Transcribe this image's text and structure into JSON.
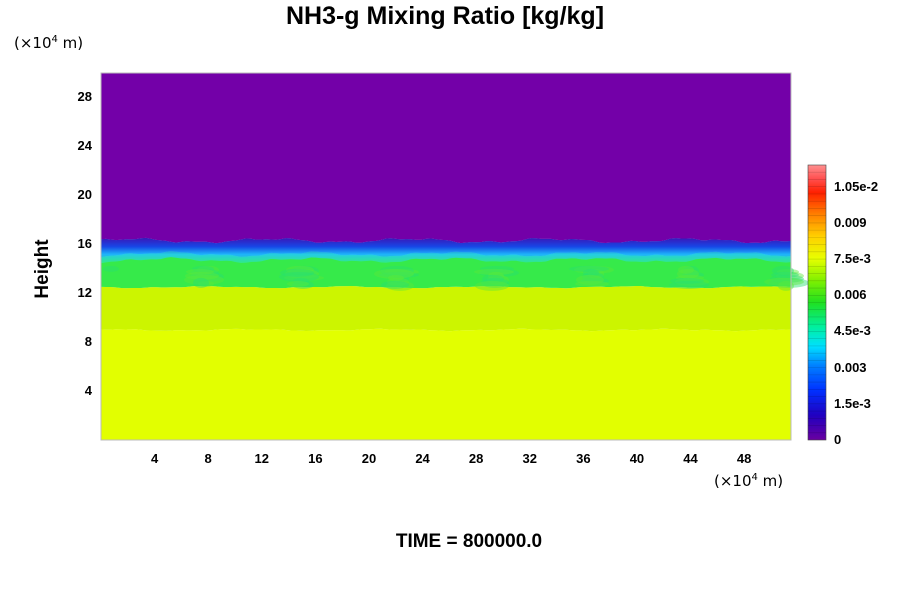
{
  "chart_data": {
    "type": "heatmap",
    "title": "NH3-g Mixing Ratio [kg/kg]",
    "ylabel": "Height",
    "xlabel": "",
    "y_unit": {
      "prefix": "(×10",
      "exp": "4",
      "suffix": " m)"
    },
    "x_unit": {
      "prefix": "(×10",
      "exp": "4",
      "suffix": " m)"
    },
    "xlim": [
      0,
      51.5
    ],
    "ylim": [
      0,
      30
    ],
    "xticks": [
      "4",
      "8",
      "12",
      "16",
      "20",
      "24",
      "28",
      "32",
      "36",
      "40",
      "44",
      "48"
    ],
    "yticks": [
      "4",
      "8",
      "12",
      "16",
      "20",
      "24",
      "28"
    ],
    "colorbar": {
      "min": 0,
      "max": 0.0114,
      "labels": [
        "1.05e-2",
        "0.009",
        "7.5e-3",
        "0.006",
        "4.5e-3",
        "0.003",
        "1.5e-3",
        "0"
      ],
      "label_values": [
        0.0105,
        0.009,
        0.0075,
        0.006,
        0.0045,
        0.003,
        0.0015,
        0
      ]
    },
    "layers": [
      {
        "from_height": 0,
        "to_height": 9,
        "value": 0.0079,
        "color": "#e2ff00"
      },
      {
        "from_height": 9,
        "to_height": 12.5,
        "value": 0.0073,
        "color": "#ccf500"
      },
      {
        "from_height": 12.5,
        "to_height": 15.2,
        "value": 0.0056,
        "color": "#36ea4a"
      },
      {
        "from_height": 15.2,
        "to_height": 16.3,
        "value": 0.0012,
        "color": "#1040e0"
      },
      {
        "from_height": 16.3,
        "to_height": 30,
        "value": 0,
        "color": "#7300a8"
      }
    ]
  },
  "footer": "TIME = 800000.0"
}
